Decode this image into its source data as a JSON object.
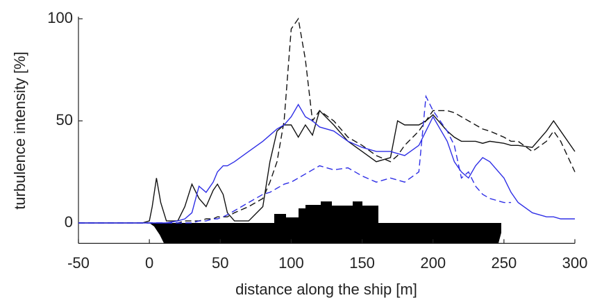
{
  "chart_data": {
    "type": "line",
    "xlabel": "distance along the ship [m]",
    "ylabel": "turbulence intensity [%]",
    "x": [
      -50,
      -10,
      -5,
      0,
      2,
      5,
      8,
      12,
      20,
      25,
      30,
      35,
      40,
      45,
      48,
      52,
      55,
      60,
      70,
      80,
      85,
      90,
      95,
      100,
      105,
      110,
      115,
      120,
      130,
      140,
      150,
      160,
      170,
      175,
      180,
      190,
      195,
      200,
      210,
      215,
      220,
      225,
      230,
      235,
      240,
      250,
      255,
      260,
      270,
      280,
      285,
      290,
      300
    ],
    "series": [
      {
        "color": "#111111",
        "style": "solid",
        "values": [
          0,
          0,
          0,
          1,
          8,
          22,
          10,
          1,
          1,
          8,
          19,
          12,
          8,
          16,
          19,
          14,
          5,
          1,
          1,
          8,
          30,
          45,
          48,
          48,
          42,
          48,
          43,
          55,
          48,
          40,
          35,
          30,
          32,
          50,
          48,
          48,
          50,
          53,
          45,
          42,
          40,
          40,
          40,
          39,
          40,
          39,
          38,
          38,
          37,
          45,
          50,
          45,
          35
        ]
      },
      {
        "color": "#111111",
        "style": "dashed",
        "values": [
          0,
          0,
          0,
          0,
          0,
          0,
          0,
          0,
          0,
          1,
          1,
          1,
          2,
          2,
          3,
          3,
          3,
          5,
          8,
          12,
          20,
          30,
          50,
          95,
          100,
          80,
          50,
          55,
          50,
          42,
          38,
          33,
          30,
          33,
          38,
          45,
          50,
          55,
          55,
          54,
          52,
          50,
          48,
          46,
          45,
          42,
          40,
          40,
          35,
          40,
          45,
          40,
          25
        ]
      },
      {
        "color": "#2e2ee6",
        "style": "solid",
        "values": [
          0,
          0,
          0,
          0,
          0,
          0,
          0,
          0,
          1,
          2,
          5,
          18,
          15,
          20,
          25,
          28,
          28,
          30,
          35,
          40,
          43,
          46,
          48,
          52,
          58,
          52,
          50,
          47,
          45,
          40,
          37,
          35,
          35,
          34,
          33,
          38,
          45,
          52,
          40,
          30,
          25,
          22,
          28,
          32,
          30,
          22,
          15,
          10,
          5,
          3,
          3,
          2,
          2
        ]
      },
      {
        "color": "#2e2ee6",
        "style": "dashed",
        "values": [
          0,
          0,
          0,
          0,
          0,
          0,
          0,
          0,
          0,
          0,
          0,
          1,
          1,
          2,
          2,
          3,
          4,
          6,
          10,
          14,
          15,
          17,
          19,
          20,
          22,
          24,
          26,
          28,
          26,
          27,
          23,
          20,
          22,
          21,
          20,
          25,
          62,
          55,
          45,
          38,
          22,
          25,
          18,
          14,
          12,
          10,
          10,
          null,
          null,
          null,
          null,
          null,
          null
        ]
      }
    ],
    "xlim": [
      -50,
      300
    ],
    "xticks": [
      -50,
      0,
      50,
      100,
      150,
      200,
      250,
      300
    ],
    "ylim": [
      -10,
      100
    ],
    "yticks": [
      0,
      50,
      100
    ]
  }
}
